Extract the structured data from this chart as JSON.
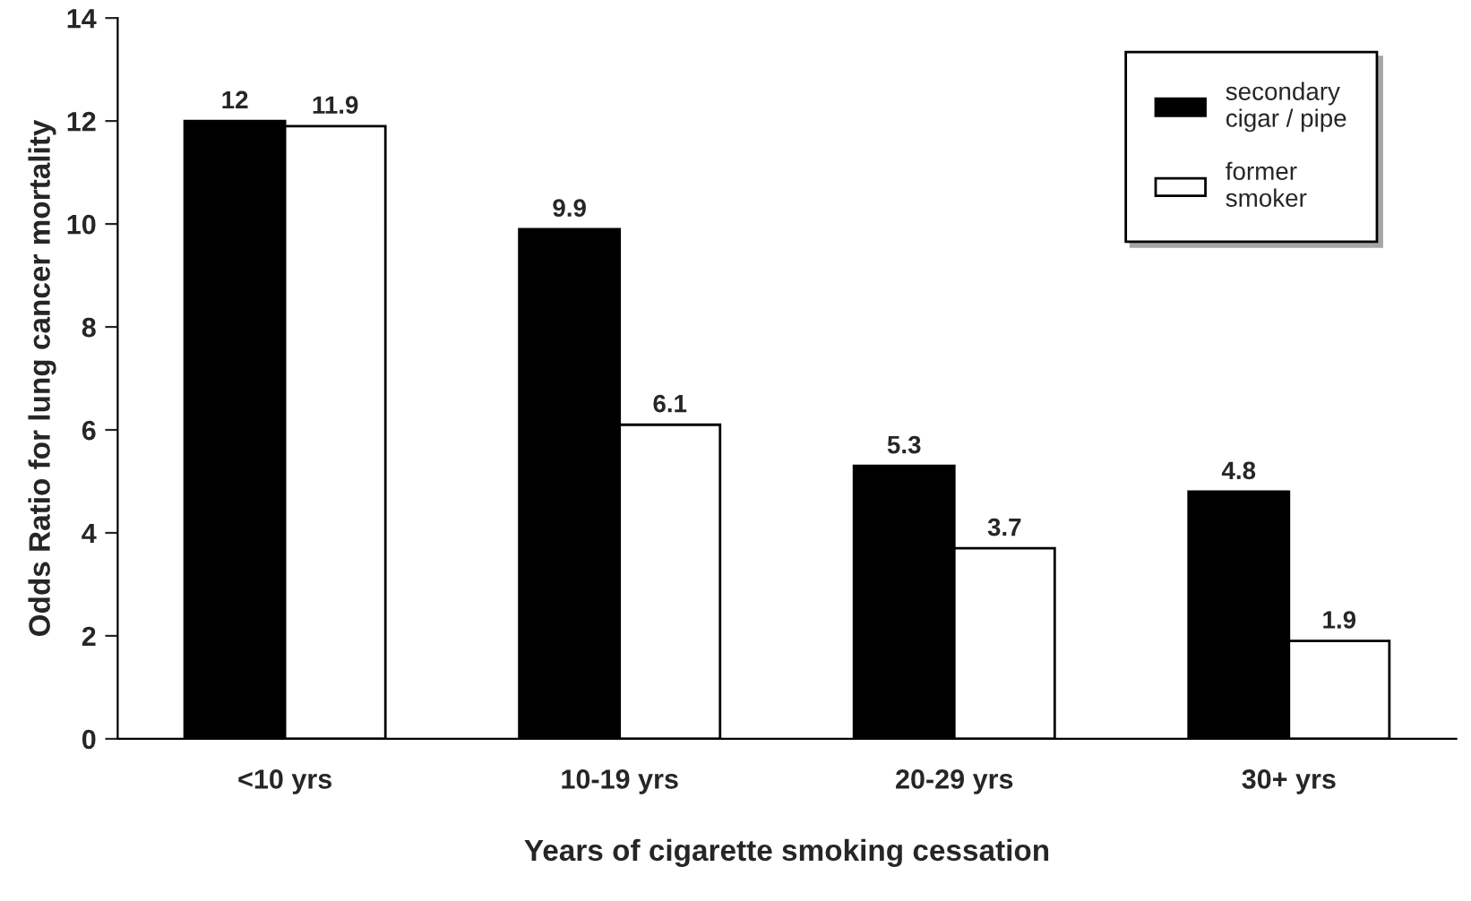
{
  "chart_data": {
    "type": "bar",
    "xlabel": "Years of cigarette smoking cessation",
    "ylabel": "Odds Ratio for lung cancer mortality",
    "categories": [
      "<10 yrs",
      "10-19 yrs",
      "20-29 yrs",
      "30+ yrs"
    ],
    "series": [
      {
        "name": "secondary\ncigar / pipe",
        "color": "#000000",
        "values": [
          12,
          9.9,
          5.3,
          4.8
        ]
      },
      {
        "name": "former\nsmoker",
        "color": "#ffffff",
        "values": [
          11.9,
          6.1,
          3.7,
          1.9
        ]
      }
    ],
    "ylim": [
      0,
      14
    ],
    "yticks": [
      0,
      2,
      4,
      6,
      8,
      10,
      12,
      14
    ],
    "data_labels": true,
    "legend": "top right",
    "grid": false
  }
}
